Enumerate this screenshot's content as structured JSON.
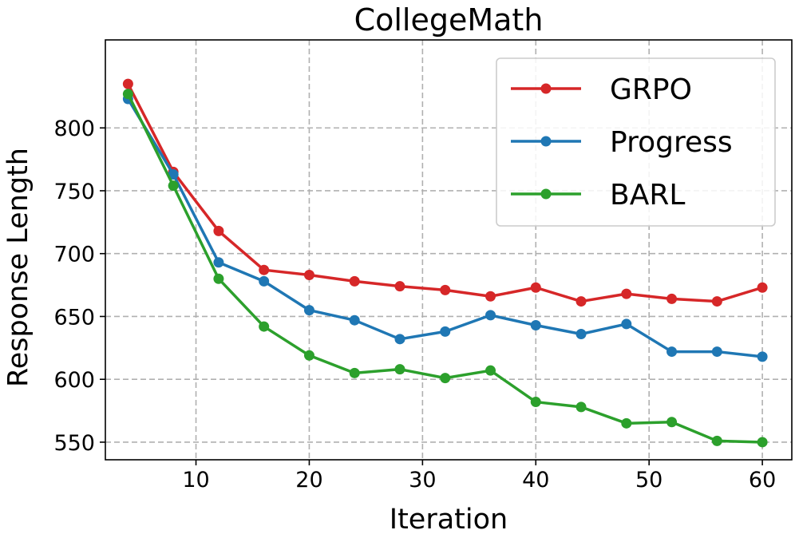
{
  "chart_data": {
    "type": "line",
    "title": "CollegeMath",
    "xlabel": "Iteration",
    "ylabel": "Response Length",
    "x": [
      4,
      8,
      12,
      16,
      20,
      24,
      28,
      32,
      36,
      40,
      44,
      48,
      52,
      56,
      60
    ],
    "xlim": [
      2,
      62.6
    ],
    "ylim": [
      536,
      870
    ],
    "xticks": [
      10,
      20,
      30,
      40,
      50,
      60
    ],
    "yticks": [
      550,
      600,
      650,
      700,
      750,
      800
    ],
    "grid": true,
    "legend_position": "top-right",
    "series": [
      {
        "name": "GRPO",
        "color": "#d62728",
        "values": [
          835,
          765,
          718,
          687,
          683,
          678,
          674,
          671,
          666,
          673,
          662,
          668,
          664,
          662,
          673
        ]
      },
      {
        "name": "Progress",
        "color": "#1f77b4",
        "values": [
          823,
          763,
          693,
          678,
          655,
          647,
          632,
          638,
          651,
          643,
          636,
          644,
          622,
          622,
          618
        ]
      },
      {
        "name": "BARL",
        "color": "#2ca02c",
        "values": [
          827,
          754,
          680,
          642,
          619,
          605,
          608,
          601,
          607,
          582,
          578,
          565,
          566,
          551,
          550
        ]
      }
    ]
  }
}
